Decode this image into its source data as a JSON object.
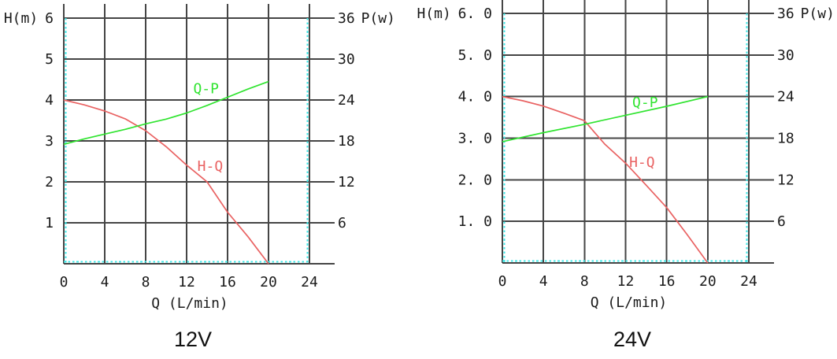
{
  "colors": {
    "background": "#ffffff",
    "grid": "#454545",
    "border_accent_cyan": "#3EE7E7",
    "curve_red": "#E96262",
    "curve_green": "#30E430",
    "text": "#1A1A1A"
  },
  "chart_data": [
    {
      "type": "line",
      "title": "12V",
      "xlabel": "Q (L/min)",
      "ylabel_left": "H(m)",
      "ylabel_right": "P(w)",
      "xlim": [
        0,
        24
      ],
      "ylim_left": [
        0,
        6
      ],
      "ylim_right": [
        0,
        36
      ],
      "grid": true,
      "x_ticks": [
        0,
        4,
        8,
        12,
        16,
        20,
        24
      ],
      "x_tick_labels": [
        "0",
        "4",
        "8",
        "12",
        "16",
        "20",
        "24"
      ],
      "y_ticks_left_values": [
        6,
        5,
        4,
        3,
        2,
        1
      ],
      "y_ticks_left_labels": [
        "6",
        "5",
        "4",
        "3",
        "2",
        "1"
      ],
      "y_ticks_right_values": [
        36,
        30,
        24,
        18,
        12,
        6
      ],
      "y_ticks_right_labels": [
        "36",
        "30",
        "24",
        "18",
        "12",
        "6"
      ],
      "series": [
        {
          "name": "H-Q",
          "axis": "left",
          "color": "#E96262",
          "x": [
            0,
            2,
            4,
            6,
            8,
            10,
            12,
            14,
            16,
            18,
            20
          ],
          "y": [
            4.0,
            3.88,
            3.73,
            3.54,
            3.25,
            2.86,
            2.41,
            2.0,
            1.26,
            0.66,
            0
          ]
        },
        {
          "name": "Q-P",
          "axis": "right",
          "color": "#30E430",
          "x": [
            0,
            2,
            4,
            6,
            8,
            10,
            12,
            14,
            16,
            18,
            20
          ],
          "y": [
            17.5,
            18.3,
            19.0,
            19.7,
            20.5,
            21.2,
            22.1,
            23.2,
            24.4,
            25.6,
            26.7
          ]
        }
      ],
      "series_labels": [
        {
          "text": "H-Q",
          "x": 14.3,
          "y": 2.38,
          "color": "#E96262"
        },
        {
          "text": "Q-P",
          "x": 13.9,
          "y": 4.28,
          "color": "#30E430"
        }
      ]
    },
    {
      "type": "line",
      "title": "24V",
      "xlabel": "Q (L/min)",
      "ylabel_left": "H(m)",
      "ylabel_right": "P(w)",
      "xlim": [
        0,
        24
      ],
      "ylim_left": [
        0,
        6
      ],
      "ylim_right": [
        0,
        36
      ],
      "grid": true,
      "x_ticks": [
        0,
        4,
        8,
        12,
        16,
        20,
        24
      ],
      "x_tick_labels": [
        "0",
        "4",
        "8",
        "12",
        "16",
        "20",
        "24"
      ],
      "y_ticks_left_values": [
        6,
        5,
        4,
        3,
        2,
        1
      ],
      "y_ticks_left_labels": [
        "6. 0",
        "5. 0",
        "4. 0",
        "3. 0",
        "2. 0",
        "1. 0"
      ],
      "y_ticks_right_values": [
        36,
        30,
        24,
        18,
        12,
        6
      ],
      "y_ticks_right_labels": [
        "36",
        "30",
        "24",
        "18",
        "12",
        "6"
      ],
      "series": [
        {
          "name": "H-Q",
          "axis": "left",
          "color": "#E96262",
          "x": [
            0,
            2,
            4,
            6,
            8,
            9,
            10,
            12,
            14,
            16,
            18,
            20
          ],
          "y": [
            4.0,
            3.9,
            3.77,
            3.6,
            3.42,
            3.13,
            2.85,
            2.4,
            1.87,
            1.33,
            0.68,
            0
          ]
        },
        {
          "name": "Q-P",
          "axis": "right",
          "color": "#30E430",
          "x": [
            0,
            4,
            8,
            12,
            16,
            20
          ],
          "y": [
            17.5,
            18.8,
            20.0,
            21.3,
            22.6,
            24.0
          ]
        }
      ],
      "series_labels": [
        {
          "text": "H-Q",
          "x": 13.6,
          "y": 2.42,
          "color": "#E96262"
        },
        {
          "text": "Q-P",
          "x": 13.9,
          "y": 3.86,
          "color": "#30E430"
        }
      ]
    }
  ]
}
